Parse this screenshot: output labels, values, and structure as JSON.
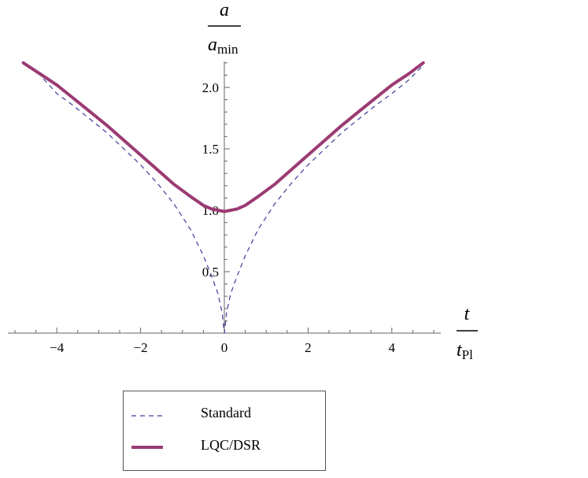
{
  "chart_data": {
    "type": "line",
    "xlabel": {
      "numerator": "t",
      "denominator_base": "t",
      "denominator_sub": "Pl"
    },
    "ylabel": {
      "numerator": "a",
      "denominator_base": "a",
      "denominator_sub": "min"
    },
    "xlim": [
      -5.2,
      5.2
    ],
    "ylim": [
      0,
      2.2
    ],
    "x_ticks": [
      -4,
      -2,
      0,
      2,
      4
    ],
    "x_tick_labels": [
      "−4",
      "−2",
      "0",
      "2",
      "4"
    ],
    "y_ticks": [
      0.5,
      1.0,
      1.5,
      2.0
    ],
    "y_tick_labels": [
      "0.5",
      "1.0",
      "1.5",
      "2.0"
    ],
    "grid": false,
    "legend_position": "bottom-center",
    "series": [
      {
        "name": "Standard",
        "style": "dashed",
        "color": "#3b3b9c",
        "x": [
          -4.8,
          -4.4,
          -4.0,
          -3.6,
          -3.2,
          -2.8,
          -2.4,
          -2.0,
          -1.6,
          -1.2,
          -0.8,
          -0.5,
          -0.3,
          -0.15,
          -0.05,
          0,
          0.05,
          0.15,
          0.3,
          0.5,
          0.8,
          1.2,
          1.6,
          2.0,
          2.4,
          2.8,
          3.2,
          3.6,
          4.0,
          4.4,
          4.75
        ],
        "y": [
          2.2,
          2.1,
          1.95,
          1.85,
          1.74,
          1.63,
          1.5,
          1.37,
          1.22,
          1.05,
          0.84,
          0.63,
          0.46,
          0.32,
          0.16,
          0,
          0.16,
          0.32,
          0.46,
          0.63,
          0.84,
          1.05,
          1.22,
          1.37,
          1.5,
          1.63,
          1.74,
          1.85,
          1.95,
          2.06,
          2.18
        ]
      },
      {
        "name": "LQC/DSR",
        "style": "solid",
        "color": "#9b3a73",
        "x": [
          -4.8,
          -4.4,
          -4.0,
          -3.6,
          -3.2,
          -2.8,
          -2.4,
          -2.0,
          -1.6,
          -1.2,
          -0.8,
          -0.5,
          -0.3,
          -0.15,
          0,
          0.15,
          0.3,
          0.5,
          0.8,
          1.2,
          1.6,
          2.0,
          2.4,
          2.8,
          3.2,
          3.6,
          4.0,
          4.4,
          4.75
        ],
        "y": [
          2.2,
          2.11,
          2.02,
          1.91,
          1.8,
          1.69,
          1.57,
          1.45,
          1.33,
          1.21,
          1.11,
          1.04,
          1.01,
          1.0,
          0.99,
          1.0,
          1.01,
          1.04,
          1.11,
          1.21,
          1.33,
          1.45,
          1.57,
          1.69,
          1.8,
          1.91,
          2.02,
          2.11,
          2.2
        ]
      }
    ]
  },
  "legend": {
    "items": [
      {
        "label": "Standard",
        "style": "dashed",
        "color": "#3b3b9c"
      },
      {
        "label": "LQC/DSR",
        "style": "solid",
        "color": "#9b3a73"
      }
    ]
  }
}
